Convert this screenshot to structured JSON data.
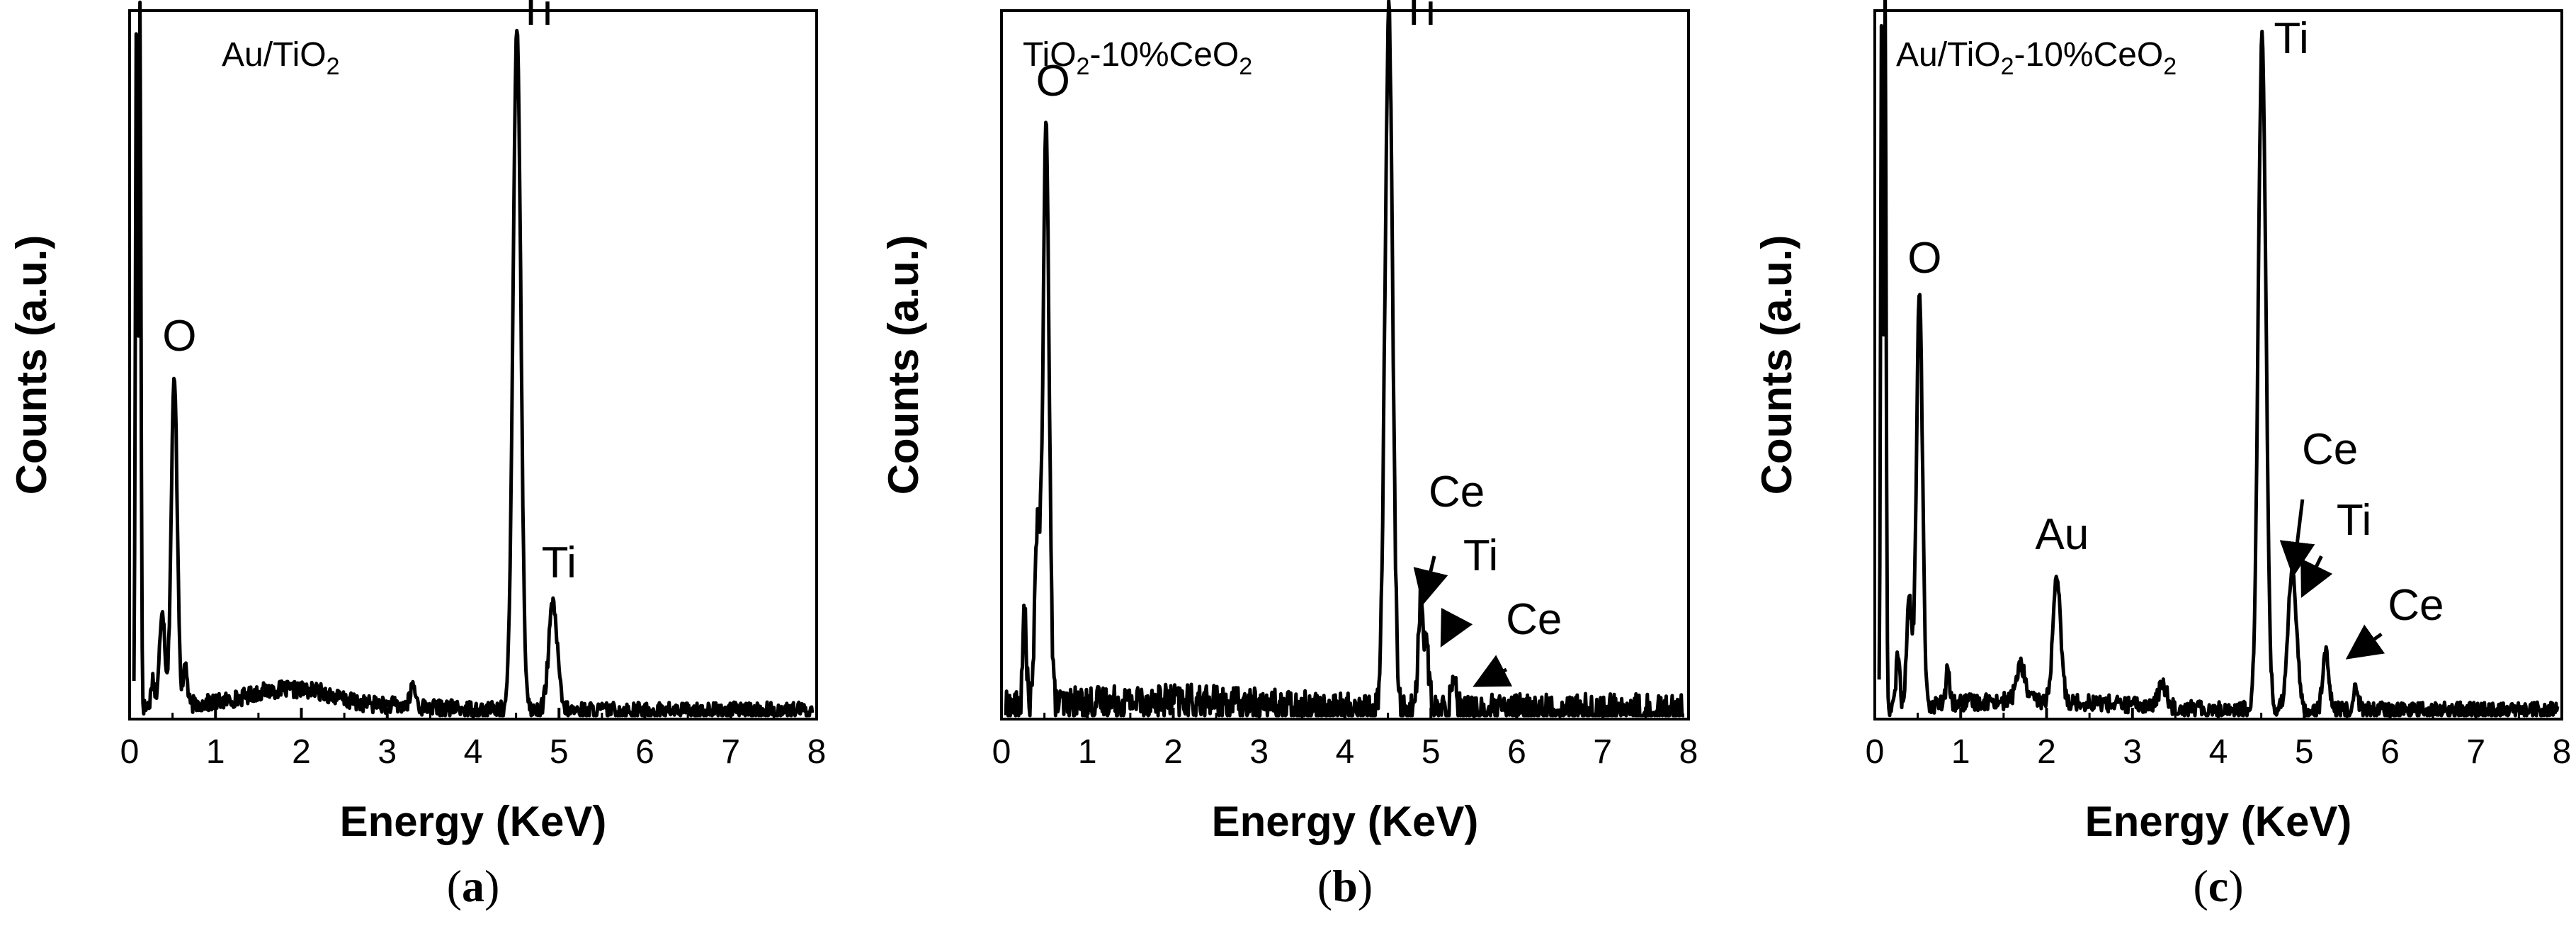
{
  "chart_data": [
    {
      "id": "a",
      "type": "line",
      "title_parts": [
        [
          "Au/TiO",
          "2"
        ]
      ],
      "xlabel": "Energy (KeV)",
      "ylabel": "Counts (a.u.)",
      "xlim": [
        0,
        8
      ],
      "ylim": [
        0,
        100
      ],
      "xticks": [
        "0",
        "1",
        "2",
        "3",
        "4",
        "5",
        "6",
        "7",
        "8"
      ],
      "subfigure_label": {
        "open": "(",
        "letter": "a",
        "close": ")"
      },
      "baseline_peaks": [
        [
          0.08,
          0.012,
          100
        ],
        [
          0.12,
          0.012,
          100
        ],
        [
          0.38,
          0.03,
          14
        ],
        [
          0.52,
          0.035,
          46
        ],
        [
          0.65,
          0.02,
          6
        ],
        [
          0.27,
          0.02,
          4
        ],
        [
          1.7,
          0.3,
          1.5
        ],
        [
          2.2,
          0.2,
          1
        ],
        [
          3.3,
          0.03,
          3
        ],
        [
          4.51,
          0.045,
          97
        ],
        [
          4.93,
          0.05,
          15
        ]
      ],
      "noise": 1.5,
      "annotations": [
        {
          "text": "O",
          "x": 0.58,
          "y": 52
        },
        {
          "text": "Ti",
          "x": 4.72,
          "y": 98
        },
        {
          "text": "Ti",
          "x": 5.0,
          "y": 20
        }
      ],
      "arrows": []
    },
    {
      "id": "b",
      "type": "line",
      "title_parts": [
        [
          "TiO",
          "2"
        ],
        [
          "-10%CeO",
          "2"
        ]
      ],
      "xlabel": "Energy (KeV)",
      "ylabel": "Counts (a.u.)",
      "xlim": [
        0,
        8
      ],
      "ylim": [
        0,
        100
      ],
      "xticks": [
        "0",
        "1",
        "2",
        "3",
        "4",
        "5",
        "6",
        "7",
        "8"
      ],
      "subfigure_label": {
        "open": "(",
        "letter": "b",
        "close": ")"
      },
      "baseline_peaks": [
        [
          0.27,
          0.02,
          14
        ],
        [
          0.42,
          0.03,
          26
        ],
        [
          0.52,
          0.035,
          82
        ],
        [
          4.51,
          0.045,
          98
        ],
        [
          4.88,
          0.03,
          15
        ],
        [
          4.95,
          0.03,
          8
        ],
        [
          5.27,
          0.03,
          5
        ]
      ],
      "noise": 3,
      "annotations": [
        {
          "text": "O",
          "x": 0.6,
          "y": 88
        },
        {
          "text": "Ti",
          "x": 4.85,
          "y": 98
        },
        {
          "text": "Ce",
          "x": 5.3,
          "y": 30
        },
        {
          "text": "Ti",
          "x": 5.58,
          "y": 21
        },
        {
          "text": "Ce",
          "x": 6.2,
          "y": 12
        }
      ],
      "arrows": [
        {
          "from": [
            5.04,
            23
          ],
          "to": [
            4.92,
            17
          ]
        },
        {
          "from": [
            5.28,
            14
          ],
          "to": [
            5.15,
            11
          ]
        },
        {
          "from": [
            5.88,
            7
          ],
          "to": [
            5.56,
            5
          ]
        }
      ]
    },
    {
      "id": "c",
      "type": "line",
      "title_parts": [
        [
          "Au/TiO",
          "2"
        ],
        [
          "-10%CeO",
          "2"
        ]
      ],
      "xlabel": "Energy (KeV)",
      "ylabel": "Counts (a.u.)",
      "xlim": [
        0,
        8
      ],
      "ylim": [
        0,
        100
      ],
      "xticks": [
        "0",
        "1",
        "2",
        "3",
        "4",
        "5",
        "6",
        "7",
        "8"
      ],
      "subfigure_label": {
        "open": "(",
        "letter": "c",
        "close": ")"
      },
      "baseline_peaks": [
        [
          0.08,
          0.012,
          100
        ],
        [
          0.12,
          0.012,
          100
        ],
        [
          0.27,
          0.02,
          8
        ],
        [
          0.4,
          0.03,
          15
        ],
        [
          0.52,
          0.035,
          58
        ],
        [
          0.85,
          0.02,
          5
        ],
        [
          1.7,
          0.05,
          5
        ],
        [
          2.12,
          0.045,
          17
        ],
        [
          3.35,
          0.05,
          3
        ],
        [
          4.51,
          0.045,
          95
        ],
        [
          4.86,
          0.05,
          20
        ],
        [
          5.25,
          0.035,
          8
        ],
        [
          5.6,
          0.03,
          3
        ]
      ],
      "noise": 1.5,
      "annotations": [
        {
          "text": "O",
          "x": 0.58,
          "y": 63
        },
        {
          "text": "Au",
          "x": 2.18,
          "y": 24
        },
        {
          "text": "Ti",
          "x": 4.85,
          "y": 94
        },
        {
          "text": "Ce",
          "x": 5.3,
          "y": 36
        },
        {
          "text": "Ti",
          "x": 5.58,
          "y": 26
        },
        {
          "text": "Ce",
          "x": 6.3,
          "y": 14
        }
      ],
      "arrows": [
        {
          "from": [
            4.98,
            31
          ],
          "to": [
            4.88,
            21
          ]
        },
        {
          "from": [
            5.2,
            23
          ],
          "to": [
            5.0,
            18
          ]
        },
        {
          "from": [
            5.9,
            12
          ],
          "to": [
            5.55,
            9
          ]
        }
      ]
    }
  ]
}
